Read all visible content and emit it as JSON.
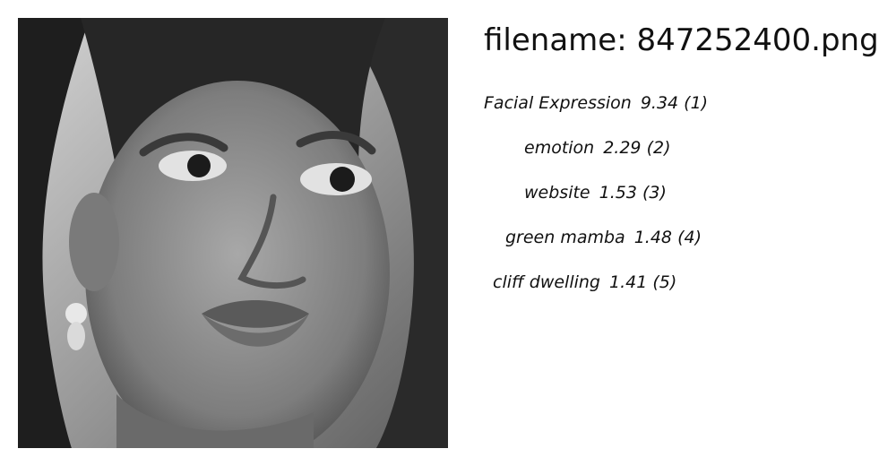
{
  "image": {
    "subject": "grayscale close-up face photo"
  },
  "filename_prefix": "filename: ",
  "filename": "847252400.png",
  "labels": [
    {
      "name": "Facial Expression",
      "score": "9.34",
      "rank": "(1)"
    },
    {
      "name": "emotion",
      "score": "2.29",
      "rank": "(2)"
    },
    {
      "name": "website",
      "score": "1.53",
      "rank": "(3)"
    },
    {
      "name": "green mamba",
      "score": "1.48",
      "rank": "(4)"
    },
    {
      "name": "cliff dwelling",
      "score": "1.41",
      "rank": "(5)"
    }
  ]
}
